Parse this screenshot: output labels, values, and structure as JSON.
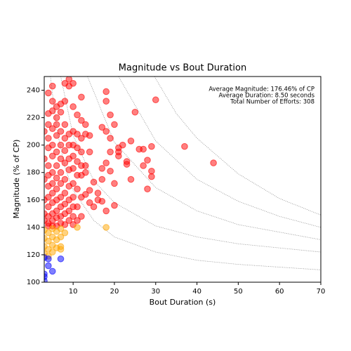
{
  "chart_data": {
    "type": "scatter",
    "title": "Magnitude vs Bout Duration",
    "x_label": "Bout Duration (s)",
    "y_label": "Magnitude (% of CP)",
    "xlim": [
      3,
      70
    ],
    "ylim": [
      100,
      250
    ],
    "xticks": [
      10,
      20,
      30,
      40,
      50,
      60,
      70
    ],
    "yticks": [
      100,
      120,
      140,
      160,
      180,
      200,
      220,
      240
    ],
    "annotations": [
      "Average Magnitude: 176.46% of CP",
      "Average Duration: 8.50 seconds",
      "Total Number of Efforts: 308"
    ],
    "series": [
      {
        "color": "#ff0000",
        "x": [
          4,
          5,
          5,
          6,
          6,
          7,
          7,
          8,
          9,
          9,
          10,
          8,
          10,
          11,
          12,
          12,
          13,
          13,
          14,
          18,
          18,
          19,
          20,
          25,
          30,
          17,
          18,
          19,
          21,
          22,
          19,
          21,
          21,
          24,
          26,
          27,
          29,
          37,
          28,
          27,
          29,
          29,
          23,
          23,
          24,
          28,
          18,
          17,
          19,
          17,
          20,
          15,
          14,
          13,
          14,
          15,
          17,
          18,
          20,
          12,
          11,
          12,
          10,
          11,
          44,
          16,
          16,
          3,
          3,
          3,
          3,
          3,
          3,
          4,
          4,
          4,
          4,
          4,
          4,
          4,
          4,
          4,
          4,
          4,
          5,
          5,
          5,
          5,
          5,
          5,
          5,
          5,
          5,
          5,
          6,
          6,
          6,
          6,
          6,
          6,
          6,
          6,
          6,
          7,
          7,
          7,
          7,
          7,
          7,
          7,
          7,
          8,
          8,
          8,
          8,
          8,
          8,
          8,
          8,
          9,
          9,
          9,
          9,
          9,
          9,
          10,
          10,
          10,
          10,
          10,
          10,
          10,
          11,
          11,
          11,
          11,
          11,
          12,
          12,
          12,
          12,
          13,
          13,
          14,
          9,
          9,
          10,
          8,
          7,
          6,
          5,
          4
        ],
        "values": [
          238,
          243,
          232,
          228,
          220,
          230,
          224,
          245,
          243,
          248,
          245,
          232,
          228,
          222,
          235,
          218,
          215,
          208,
          207,
          239,
          232,
          222,
          215,
          224,
          233,
          213,
          210,
          205,
          198,
          200,
          195,
          192,
          195,
          203,
          197,
          197,
          199,
          199,
          189,
          185,
          181,
          177,
          188,
          186,
          175,
          168,
          187,
          183,
          181,
          175,
          172,
          173,
          167,
          164,
          158,
          155,
          159,
          152,
          156,
          162,
          155,
          148,
          148,
          145,
          187,
          165,
          160,
          210,
          190,
          175,
          160,
          150,
          145,
          223,
          215,
          205,
          198,
          185,
          178,
          170,
          162,
          155,
          148,
          143,
          225,
          212,
          200,
          192,
          180,
          172,
          165,
          158,
          150,
          145,
          215,
          207,
          195,
          185,
          176,
          168,
          160,
          152,
          147,
          210,
          200,
          190,
          180,
          172,
          162,
          155,
          148,
          215,
          205,
          196,
          187,
          175,
          165,
          157,
          150,
          208,
          200,
          190,
          182,
          170,
          160,
          210,
          200,
          192,
          183,
          172,
          162,
          155,
          208,
          198,
          188,
          178,
          168,
          205,
          195,
          185,
          178,
          185,
          180,
          195,
          152,
          145,
          142,
          142,
          143,
          141,
          141,
          141
        ]
      },
      {
        "color": "#ffa500",
        "x": [
          3,
          3,
          3,
          3,
          4,
          4,
          4,
          5,
          5,
          5,
          5,
          6,
          6,
          6,
          7,
          7,
          7,
          7,
          8,
          11,
          18,
          4
        ],
        "values": [
          138,
          132,
          126,
          121,
          136,
          130,
          124,
          139,
          133,
          127,
          122,
          137,
          131,
          125,
          139,
          133,
          126,
          124,
          136,
          140,
          140,
          119
        ]
      },
      {
        "color": "#0000ff",
        "x": [
          3,
          4,
          4,
          7,
          3,
          3,
          5,
          3
        ],
        "values": [
          118,
          117,
          112,
          117,
          106,
          104,
          108,
          101
        ]
      }
    ],
    "curves": [
      {
        "color": "#888888",
        "x": [
          4.5,
          6,
          8,
          10,
          15,
          20,
          30,
          40,
          50,
          70
        ],
        "values": [
          250,
          212,
          184,
          167,
          145,
          133,
          122,
          116,
          113,
          109
        ]
      },
      {
        "color": "#888888",
        "x": [
          7,
          10,
          15,
          20,
          30,
          40,
          50,
          70
        ],
        "values": [
          250,
          207,
          174,
          158,
          141,
          133,
          128,
          122
        ]
      },
      {
        "color": "#888888",
        "x": [
          13.5,
          20,
          30,
          40,
          50,
          70
        ],
        "values": [
          250,
          202,
          169,
          152,
          142,
          131
        ]
      },
      {
        "color": "#888888",
        "x": [
          21,
          30,
          40,
          50,
          60,
          70
        ],
        "values": [
          250,
          203,
          175,
          159,
          148,
          140
        ]
      },
      {
        "color": "#888888",
        "x": [
          29.7,
          35,
          40,
          50,
          60,
          70
        ],
        "values": [
          250,
          223,
          205,
          179,
          161,
          149
        ]
      }
    ]
  }
}
